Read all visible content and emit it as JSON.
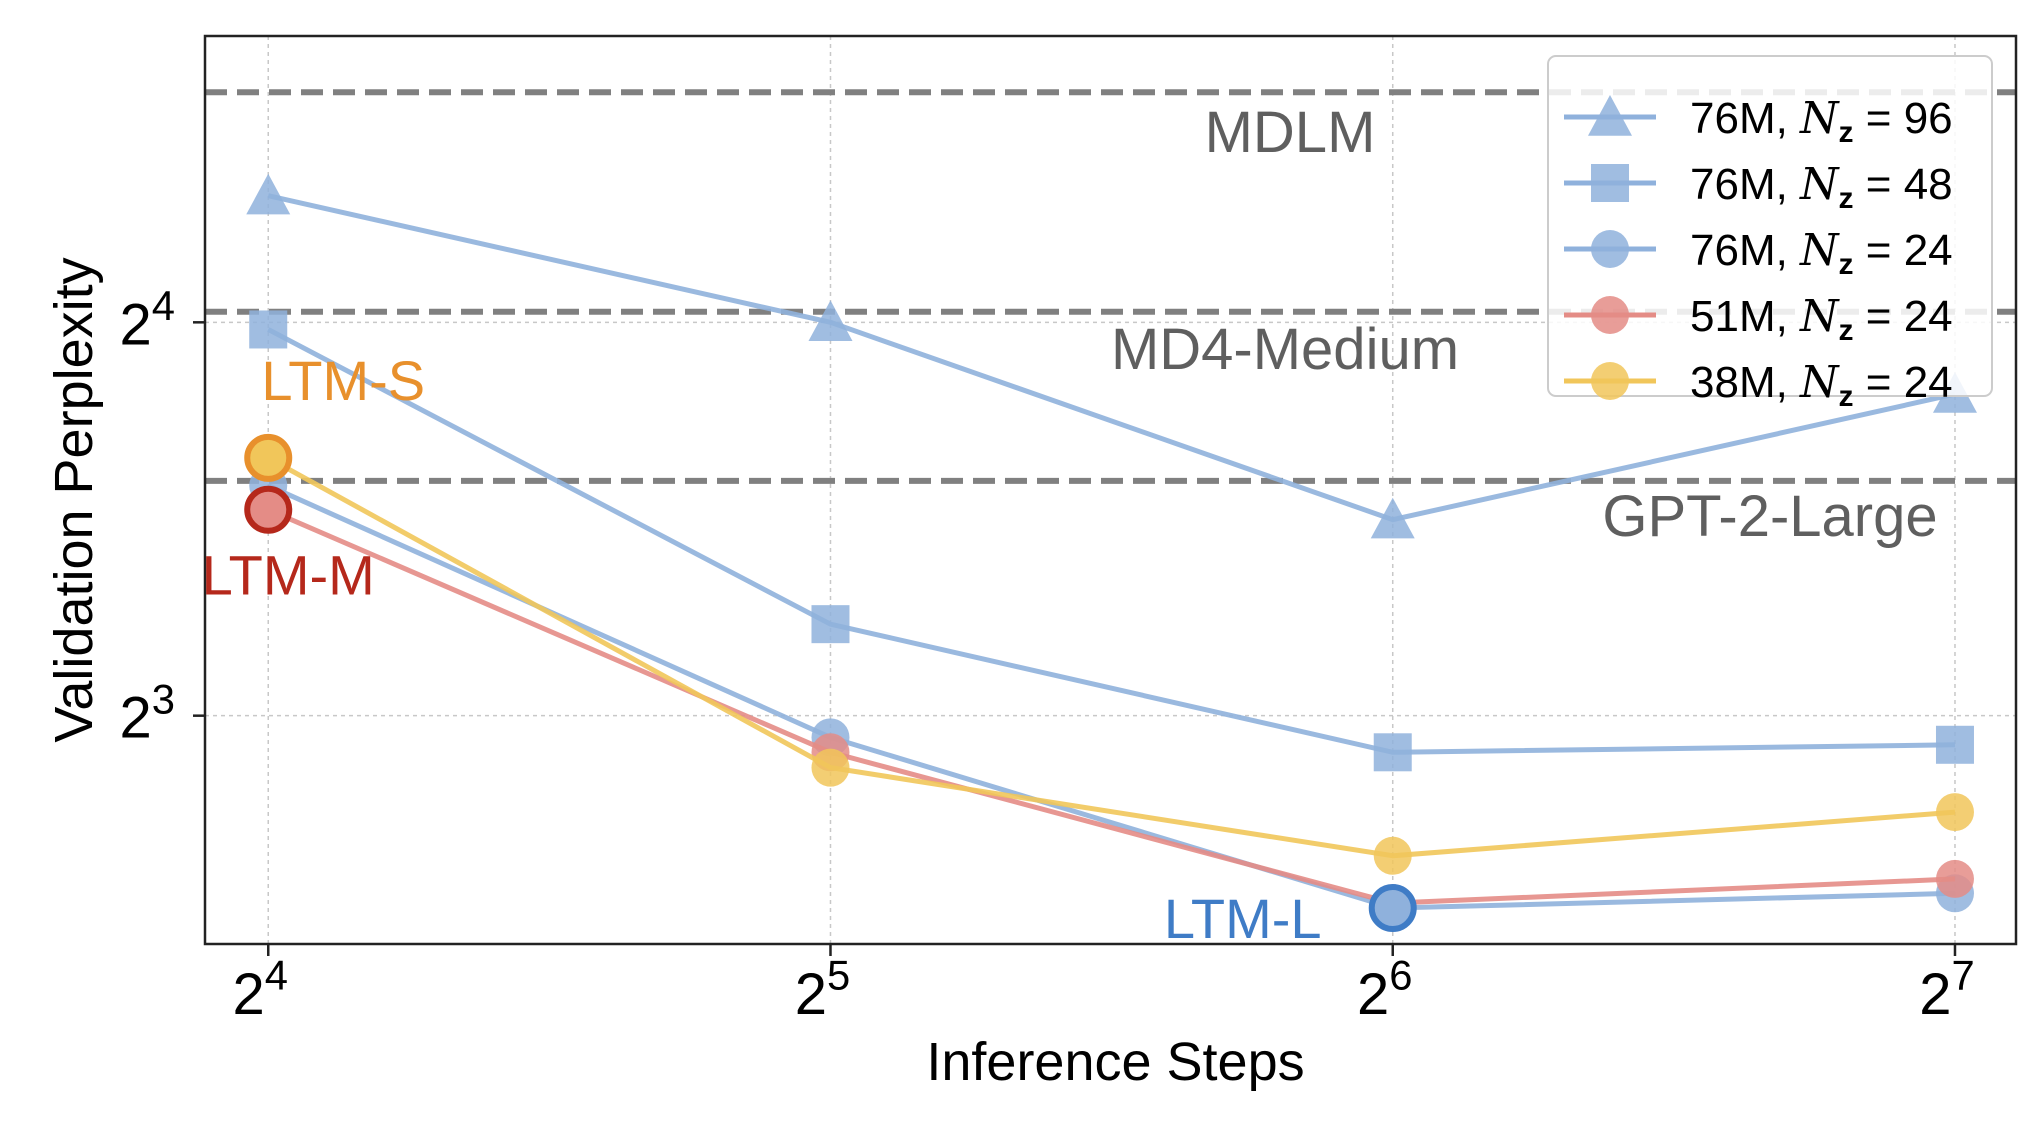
{
  "chart_data": {
    "type": "line",
    "xlabel": "Inference Steps",
    "ylabel": "Validation Perplexity",
    "x_scale": "log2",
    "y_scale": "log2",
    "x": [
      16,
      32,
      64,
      128
    ],
    "x_tick_labels": [
      {
        "value": 16,
        "base": "2",
        "exp": "4"
      },
      {
        "value": 32,
        "base": "2",
        "exp": "5"
      },
      {
        "value": 64,
        "base": "2",
        "exp": "6"
      },
      {
        "value": 128,
        "base": "2",
        "exp": "7"
      }
    ],
    "y_tick_labels": [
      {
        "value": 16,
        "base": "2",
        "exp": "4"
      },
      {
        "value": 8,
        "base": "2",
        "exp": "3"
      }
    ],
    "xlim": [
      14.8,
      138
    ],
    "ylim": [
      5.35,
      26.5
    ],
    "grid": true,
    "legend_position": "top-right",
    "series": [
      {
        "name": "76M, N_z = 96",
        "legend_prefix": "76M, ",
        "legend_sym": "N",
        "legend_sub": "z",
        "legend_eq": " = 96",
        "color": "#8fb1dc",
        "marker": "triangle",
        "values": [
          20.0,
          16.0,
          11.3,
          14.1
        ]
      },
      {
        "name": "76M, N_z = 48",
        "legend_prefix": "76M, ",
        "legend_sym": "N",
        "legend_sub": "z",
        "legend_eq": " = 48",
        "color": "#8fb1dc",
        "marker": "square",
        "values": [
          15.8,
          9.4,
          7.5,
          7.6
        ]
      },
      {
        "name": "76M, N_z = 24",
        "legend_prefix": "76M, ",
        "legend_sym": "N",
        "legend_sub": "z",
        "legend_eq": " = 24",
        "color": "#8fb1dc",
        "marker": "circle",
        "values": [
          12.0,
          7.7,
          5.7,
          5.85
        ]
      },
      {
        "name": "51M, N_z = 24",
        "legend_prefix": "51M, ",
        "legend_sym": "N",
        "legend_sub": "z",
        "legend_eq": " = 24",
        "color": "#e48c86",
        "marker": "circle",
        "values": [
          11.5,
          7.5,
          5.75,
          6.0
        ]
      },
      {
        "name": "38M, N_z = 24",
        "legend_prefix": "38M, ",
        "legend_sym": "N",
        "legend_sub": "z",
        "legend_eq": " = 24",
        "color": "#f1c65a",
        "marker": "circle",
        "values": [
          12.6,
          7.3,
          6.25,
          6.75
        ]
      }
    ],
    "reference_lines": [
      {
        "label": "MDLM",
        "value": 24.0,
        "color": "#808080"
      },
      {
        "label": "MD4-Medium",
        "value": 16.3,
        "color": "#808080"
      },
      {
        "label": "GPT-2-Large",
        "value": 12.1,
        "color": "#808080"
      }
    ],
    "annotations": [
      {
        "label": "LTM-S",
        "x": 16,
        "y": 12.6,
        "color": "#e8902c",
        "ring_color": "#e8902c",
        "fill": "#f1c65a"
      },
      {
        "label": "LTM-M",
        "x": 16,
        "y": 11.5,
        "color": "#b5281b",
        "ring_color": "#b5281b",
        "fill": "#e48c86"
      },
      {
        "label": "LTM-L",
        "x": 64,
        "y": 5.7,
        "color": "#3f7cc6",
        "ring_color": "#3f7cc6",
        "fill": "#8fb1dc"
      }
    ]
  }
}
